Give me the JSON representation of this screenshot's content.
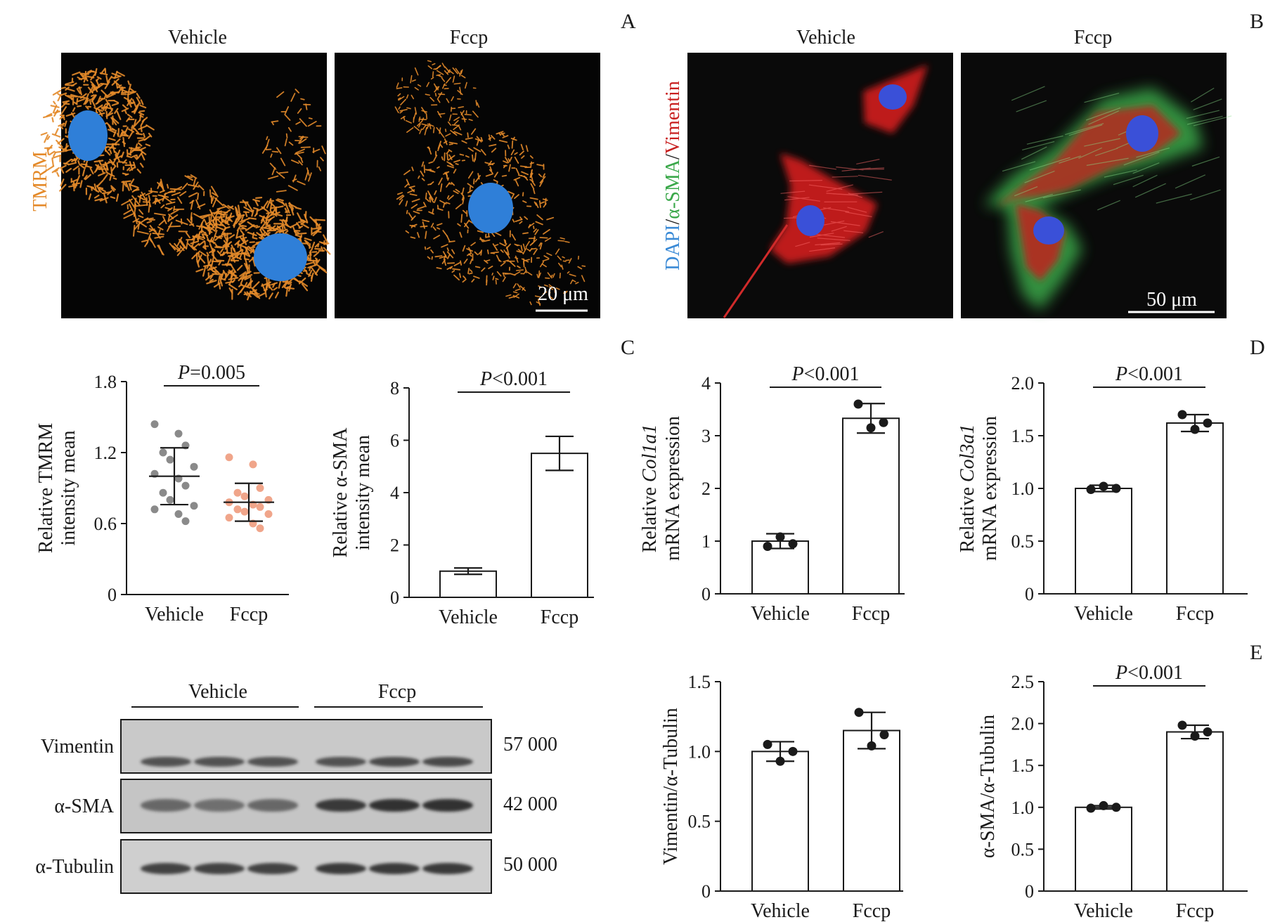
{
  "panel_letters": {
    "a": "A",
    "b": "B",
    "c": "C",
    "d": "D",
    "e": "E"
  },
  "panel_a": {
    "vehicle_label": "Vehicle",
    "fccp_label": "Fccp",
    "stain_label": "TMRM",
    "scale_bar": "20 μm",
    "colors": {
      "mito": "#e48a2a",
      "nucleus": "#2f7fd8",
      "background": "#050505"
    }
  },
  "panel_b": {
    "vehicle_label": "Vehicle",
    "fccp_label": "Fccp",
    "stain_dapi": "DAPI",
    "stain_sma": "α-SMA",
    "stain_vimentin": "Vimentin",
    "scale_bar": "50 μm",
    "colors": {
      "dapi": "#3a8ad6",
      "sma": "#3aa84a",
      "vimentin": "#c81e1e"
    }
  },
  "western_blot": {
    "vehicle_label": "Vehicle",
    "fccp_label": "Fccp",
    "rows": [
      {
        "label": "Vimentin",
        "mw": "57 000"
      },
      {
        "label": "α-SMA",
        "mw": "42 000"
      },
      {
        "label": "α-Tubulin",
        "mw": "50 000"
      }
    ]
  },
  "chart_data": [
    {
      "id": "tmrm",
      "type": "scatter",
      "ylabel_line1": "Relative TMRM",
      "ylabel_line2": "intensity mean",
      "categories": [
        "Vehicle",
        "Fccp"
      ],
      "yticks": [
        "0",
        "0.6",
        "1.2",
        "1.8"
      ],
      "ylim": [
        0,
        1.8
      ],
      "p_prefix": "P",
      "p_value": "=0.005",
      "series": [
        {
          "values": [
            1.44,
            1.36,
            1.26,
            1.2,
            1.14,
            1.08,
            1.02,
            0.98,
            0.92,
            0.86,
            0.8,
            0.75,
            0.72,
            0.68,
            0.62
          ],
          "mean": 1.0,
          "sd": 0.24,
          "color": "#8a8a8a"
        },
        {
          "values": [
            1.16,
            1.1,
            0.9,
            0.86,
            0.83,
            0.8,
            0.78,
            0.76,
            0.74,
            0.72,
            0.7,
            0.68,
            0.65,
            0.6,
            0.56
          ],
          "mean": 0.78,
          "sd": 0.16,
          "color": "#f0a58a"
        }
      ]
    },
    {
      "id": "sma_intensity",
      "type": "bar",
      "ylabel_line1": "Relative α-SMA",
      "ylabel_line2": "intensity mean",
      "categories": [
        "Vehicle",
        "Fccp"
      ],
      "yticks": [
        "0",
        "2",
        "4",
        "6",
        "8"
      ],
      "ylim": [
        0,
        8
      ],
      "p_prefix": "P",
      "p_value": "<0.001",
      "values": [
        1.0,
        5.5
      ],
      "err": [
        0.12,
        0.65
      ]
    },
    {
      "id": "col1a1",
      "type": "bar",
      "ylabel_pre": "Relative ",
      "ylabel_gene": "Col1a1",
      "ylabel_line2": "mRNA expression",
      "categories": [
        "Vehicle",
        "Fccp"
      ],
      "yticks": [
        "0",
        "1",
        "2",
        "3",
        "4"
      ],
      "ylim": [
        0,
        4
      ],
      "p_prefix": "P",
      "p_value": "<0.001",
      "values": [
        1.0,
        3.33
      ],
      "err": [
        0.14,
        0.28
      ],
      "points": [
        [
          0.9,
          1.08,
          0.95
        ],
        [
          3.6,
          3.15,
          3.25
        ]
      ]
    },
    {
      "id": "col3a1",
      "type": "bar",
      "ylabel_pre": "Relative ",
      "ylabel_gene": "Col3a1",
      "ylabel_line2": "mRNA expression",
      "categories": [
        "Vehicle",
        "Fccp"
      ],
      "yticks": [
        "0",
        "0.5",
        "1.0",
        "1.5",
        "2.0"
      ],
      "ylim": [
        0,
        2.0
      ],
      "p_prefix": "P",
      "p_value": "<0.001",
      "values": [
        1.0,
        1.62
      ],
      "err": [
        0.03,
        0.08
      ],
      "points": [
        [
          0.99,
          1.02,
          1.0
        ],
        [
          1.7,
          1.56,
          1.62
        ]
      ]
    },
    {
      "id": "vimentin_ratio",
      "type": "bar",
      "ylabel_line1": "Vimentin/α-Tubulin",
      "categories": [
        "Vehicle",
        "Fccp"
      ],
      "yticks": [
        "0",
        "0.5",
        "1.0",
        "1.5"
      ],
      "ylim": [
        0,
        1.5
      ],
      "values": [
        1.0,
        1.15
      ],
      "err": [
        0.07,
        0.13
      ],
      "points": [
        [
          1.05,
          0.93,
          1.0
        ],
        [
          1.28,
          1.04,
          1.12
        ]
      ]
    },
    {
      "id": "sma_ratio",
      "type": "bar",
      "ylabel_line1": "α-SMA/α-Tubulin",
      "categories": [
        "Vehicle",
        "Fccp"
      ],
      "yticks": [
        "0",
        "0.5",
        "1.0",
        "1.5",
        "2.0",
        "2.5"
      ],
      "ylim": [
        0,
        2.5
      ],
      "p_prefix": "P",
      "p_value": "<0.001",
      "values": [
        1.0,
        1.9
      ],
      "err": [
        0.02,
        0.08
      ],
      "points": [
        [
          0.99,
          1.02,
          1.0
        ],
        [
          1.98,
          1.85,
          1.9
        ]
      ]
    }
  ]
}
